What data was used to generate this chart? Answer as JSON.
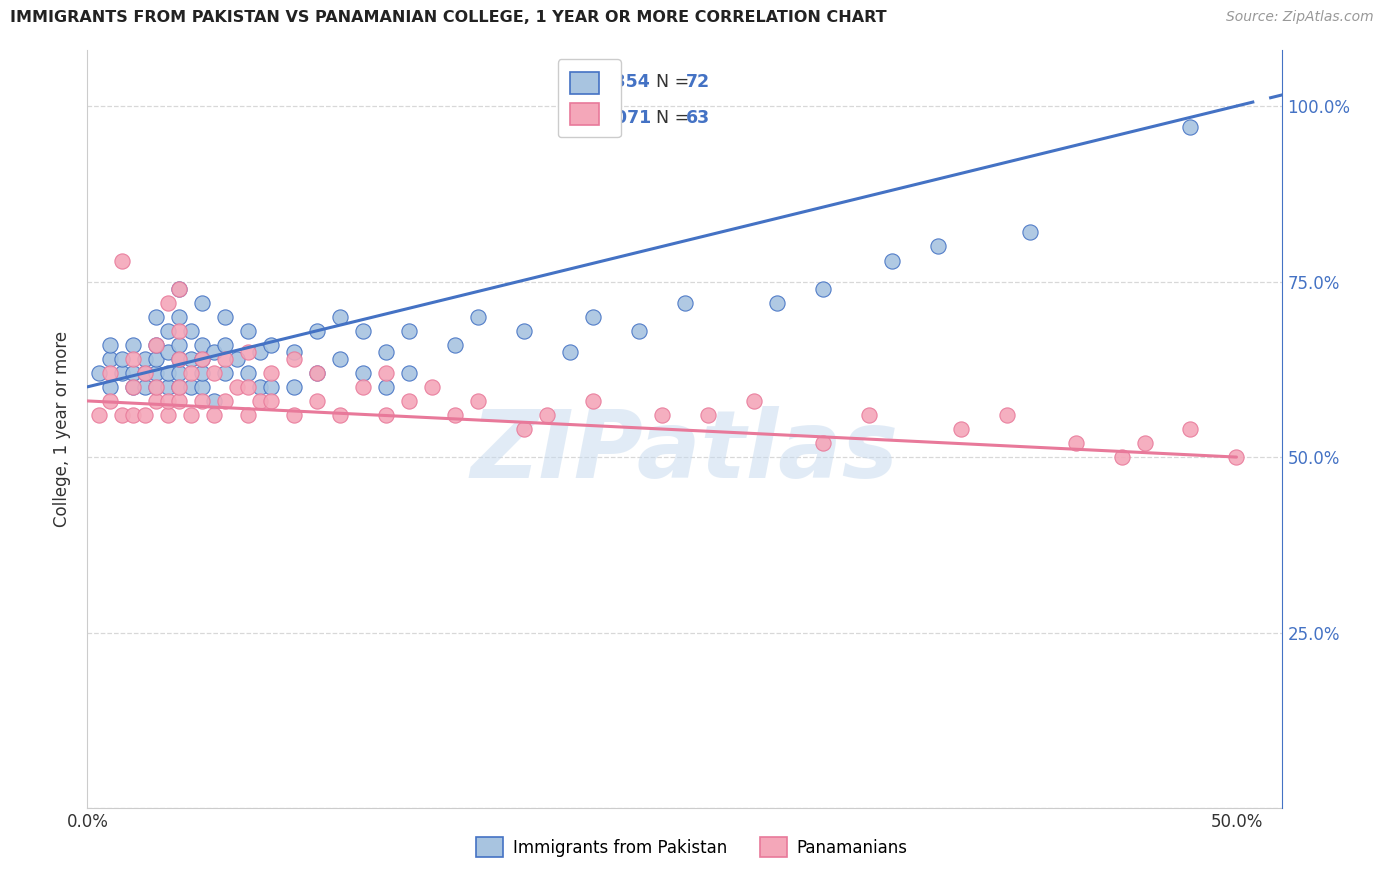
{
  "title": "IMMIGRANTS FROM PAKISTAN VS PANAMANIAN COLLEGE, 1 YEAR OR MORE CORRELATION CHART",
  "source": "Source: ZipAtlas.com",
  "ylabel": "College, 1 year or more",
  "xlim": [
    0.0,
    0.52
  ],
  "ylim": [
    0.0,
    1.08
  ],
  "x_tick_positions": [
    0.0,
    0.1,
    0.2,
    0.3,
    0.4,
    0.5
  ],
  "x_tick_labels": [
    "0.0%",
    "",
    "",
    "",
    "",
    "50.0%"
  ],
  "y_tick_positions": [
    0.0,
    0.25,
    0.5,
    0.75,
    1.0
  ],
  "y_tick_labels_right": [
    "",
    "25.0%",
    "50.0%",
    "75.0%",
    "100.0%"
  ],
  "legend_labels": [
    "Immigrants from Pakistan",
    "Panamanians"
  ],
  "blue_fill": "#a8c4e0",
  "pink_fill": "#f4a7b9",
  "blue_edge": "#4472c4",
  "pink_edge": "#e8799a",
  "blue_line_color": "#4472c4",
  "pink_line_color": "#e8799a",
  "R_blue": 0.354,
  "N_blue": 72,
  "R_pink": -0.071,
  "N_pink": 63,
  "blue_points_x": [
    0.005,
    0.01,
    0.01,
    0.01,
    0.015,
    0.015,
    0.02,
    0.02,
    0.02,
    0.025,
    0.025,
    0.025,
    0.03,
    0.03,
    0.03,
    0.03,
    0.03,
    0.035,
    0.035,
    0.035,
    0.035,
    0.04,
    0.04,
    0.04,
    0.04,
    0.04,
    0.04,
    0.045,
    0.045,
    0.045,
    0.05,
    0.05,
    0.05,
    0.05,
    0.05,
    0.055,
    0.055,
    0.06,
    0.06,
    0.06,
    0.065,
    0.07,
    0.07,
    0.075,
    0.075,
    0.08,
    0.08,
    0.09,
    0.09,
    0.1,
    0.1,
    0.11,
    0.11,
    0.12,
    0.12,
    0.13,
    0.13,
    0.14,
    0.14,
    0.16,
    0.17,
    0.19,
    0.21,
    0.22,
    0.24,
    0.26,
    0.3,
    0.32,
    0.35,
    0.37,
    0.41,
    0.48
  ],
  "blue_points_y": [
    0.62,
    0.6,
    0.64,
    0.66,
    0.62,
    0.64,
    0.6,
    0.62,
    0.66,
    0.6,
    0.62,
    0.64,
    0.6,
    0.62,
    0.64,
    0.66,
    0.7,
    0.6,
    0.62,
    0.65,
    0.68,
    0.6,
    0.62,
    0.64,
    0.66,
    0.7,
    0.74,
    0.6,
    0.64,
    0.68,
    0.6,
    0.62,
    0.64,
    0.66,
    0.72,
    0.58,
    0.65,
    0.62,
    0.66,
    0.7,
    0.64,
    0.62,
    0.68,
    0.6,
    0.65,
    0.6,
    0.66,
    0.6,
    0.65,
    0.62,
    0.68,
    0.64,
    0.7,
    0.62,
    0.68,
    0.6,
    0.65,
    0.62,
    0.68,
    0.66,
    0.7,
    0.68,
    0.65,
    0.7,
    0.68,
    0.72,
    0.72,
    0.74,
    0.78,
    0.8,
    0.82,
    0.97
  ],
  "pink_points_x": [
    0.005,
    0.01,
    0.01,
    0.015,
    0.015,
    0.02,
    0.02,
    0.02,
    0.025,
    0.025,
    0.03,
    0.03,
    0.03,
    0.035,
    0.035,
    0.035,
    0.04,
    0.04,
    0.04,
    0.04,
    0.04,
    0.045,
    0.045,
    0.05,
    0.05,
    0.055,
    0.055,
    0.06,
    0.06,
    0.065,
    0.07,
    0.07,
    0.07,
    0.075,
    0.08,
    0.08,
    0.09,
    0.09,
    0.1,
    0.1,
    0.11,
    0.12,
    0.13,
    0.13,
    0.14,
    0.15,
    0.16,
    0.17,
    0.19,
    0.2,
    0.22,
    0.25,
    0.27,
    0.29,
    0.32,
    0.34,
    0.38,
    0.4,
    0.43,
    0.45,
    0.46,
    0.48,
    0.5
  ],
  "pink_points_y": [
    0.56,
    0.58,
    0.62,
    0.56,
    0.78,
    0.56,
    0.6,
    0.64,
    0.56,
    0.62,
    0.58,
    0.6,
    0.66,
    0.56,
    0.58,
    0.72,
    0.58,
    0.6,
    0.64,
    0.68,
    0.74,
    0.56,
    0.62,
    0.58,
    0.64,
    0.56,
    0.62,
    0.58,
    0.64,
    0.6,
    0.56,
    0.6,
    0.65,
    0.58,
    0.58,
    0.62,
    0.56,
    0.64,
    0.58,
    0.62,
    0.56,
    0.6,
    0.56,
    0.62,
    0.58,
    0.6,
    0.56,
    0.58,
    0.54,
    0.56,
    0.58,
    0.56,
    0.56,
    0.58,
    0.52,
    0.56,
    0.54,
    0.56,
    0.52,
    0.5,
    0.52,
    0.54,
    0.5
  ],
  "watermark_text": "ZIPatlas",
  "bg_color": "#ffffff",
  "grid_color": "#d8d8d8",
  "blue_trend_x0": 0.0,
  "blue_trend_x1": 0.5,
  "pink_trend_x0": 0.0,
  "pink_trend_x1": 0.5
}
